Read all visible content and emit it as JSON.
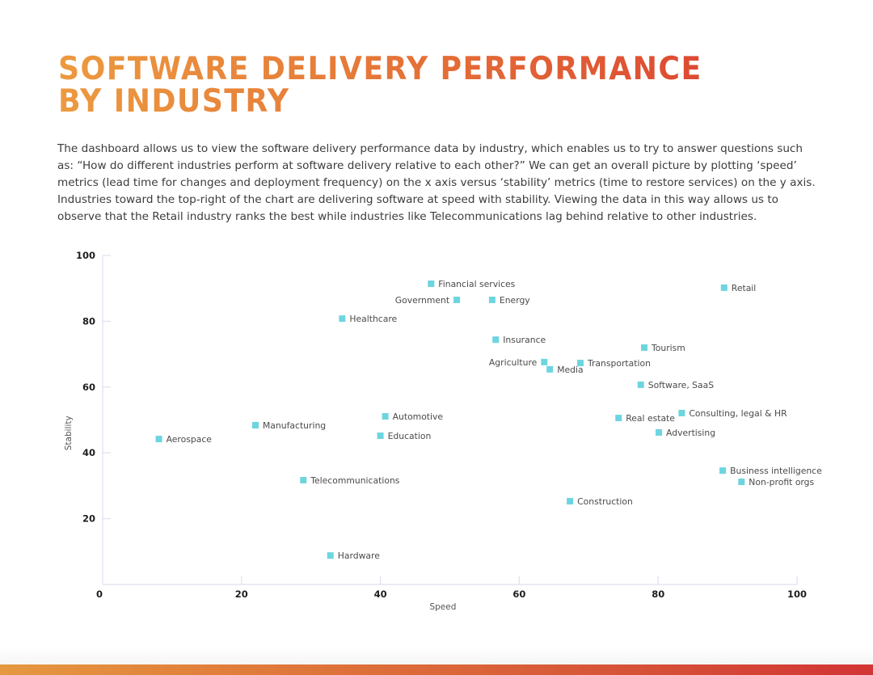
{
  "page": {
    "title_lines": [
      "SOFTWARE DELIVERY PERFORMANCE",
      "BY INDUSTRY"
    ],
    "intro": "The dashboard allows us to view the software delivery performance data by industry, which enables us to try to answer questions such as: “How do different industries perform at software delivery relative to each other?” We can get an overall picture by plotting ‘speed’ metrics (lead time for changes and deployment frequency) on the x axis versus ‘stability’ metrics (time to restore services) on the y axis. Industries toward the top-right of the chart are delivering software at speed with stability.  Viewing the data in this way allows us to observe that the Retail industry ranks the best while industries like Telecommunications lag behind relative to other industries.",
    "colors": {
      "title_gradient_start": "#ec9a3f",
      "title_gradient_end": "#dd4a32",
      "marker": "#6dd5e0",
      "axis": "#dde1ee",
      "footer_gradient_start": "#e59840",
      "footer_gradient_end": "#d23535"
    }
  },
  "chart_data": {
    "type": "scatter",
    "title": "",
    "xlabel": "Speed",
    "ylabel": "Stability",
    "xlim": [
      0,
      100
    ],
    "ylim": [
      0,
      100
    ],
    "xticks": [
      0,
      20,
      40,
      60,
      80,
      100
    ],
    "yticks": [
      20,
      40,
      60,
      80,
      100
    ],
    "grid": false,
    "legend": "none",
    "marker": "square",
    "points": [
      {
        "label": "Financial services",
        "x": 47.3,
        "y": 91.4,
        "label_side": "right"
      },
      {
        "label": "Government",
        "x": 51.0,
        "y": 86.5,
        "label_side": "left"
      },
      {
        "label": "Energy",
        "x": 56.1,
        "y": 86.5,
        "label_side": "right"
      },
      {
        "label": "Retail",
        "x": 89.5,
        "y": 90.2,
        "label_side": "right"
      },
      {
        "label": "Healthcare",
        "x": 34.5,
        "y": 80.8,
        "label_side": "right"
      },
      {
        "label": "Insurance",
        "x": 56.6,
        "y": 74.4,
        "label_side": "right"
      },
      {
        "label": "Tourism",
        "x": 78.0,
        "y": 72.0,
        "label_side": "right"
      },
      {
        "label": "Agriculture",
        "x": 63.6,
        "y": 67.6,
        "label_side": "left"
      },
      {
        "label": "Transportation",
        "x": 68.8,
        "y": 67.3,
        "label_side": "right"
      },
      {
        "label": "Media",
        "x": 64.4,
        "y": 65.4,
        "label_side": "right"
      },
      {
        "label": "Software, SaaS",
        "x": 77.5,
        "y": 60.7,
        "label_side": "right"
      },
      {
        "label": "Consulting, legal & HR",
        "x": 83.4,
        "y": 52.1,
        "label_side": "right"
      },
      {
        "label": "Real estate",
        "x": 74.3,
        "y": 50.6,
        "label_side": "right"
      },
      {
        "label": "Automotive",
        "x": 40.7,
        "y": 51.1,
        "label_side": "right"
      },
      {
        "label": "Manufacturing",
        "x": 22.0,
        "y": 48.4,
        "label_side": "right"
      },
      {
        "label": "Advertising",
        "x": 80.1,
        "y": 46.2,
        "label_side": "right"
      },
      {
        "label": "Education",
        "x": 40.0,
        "y": 45.2,
        "label_side": "right"
      },
      {
        "label": "Aerospace",
        "x": 8.1,
        "y": 44.2,
        "label_side": "right"
      },
      {
        "label": "Business intelligence",
        "x": 89.3,
        "y": 34.6,
        "label_side": "right"
      },
      {
        "label": "Non-profit orgs",
        "x": 92.0,
        "y": 31.2,
        "label_side": "right"
      },
      {
        "label": "Telecommunications",
        "x": 28.9,
        "y": 31.7,
        "label_side": "right"
      },
      {
        "label": "Construction",
        "x": 67.3,
        "y": 25.3,
        "label_side": "right"
      },
      {
        "label": "Hardware",
        "x": 32.8,
        "y": 8.8,
        "label_side": "right"
      }
    ]
  }
}
